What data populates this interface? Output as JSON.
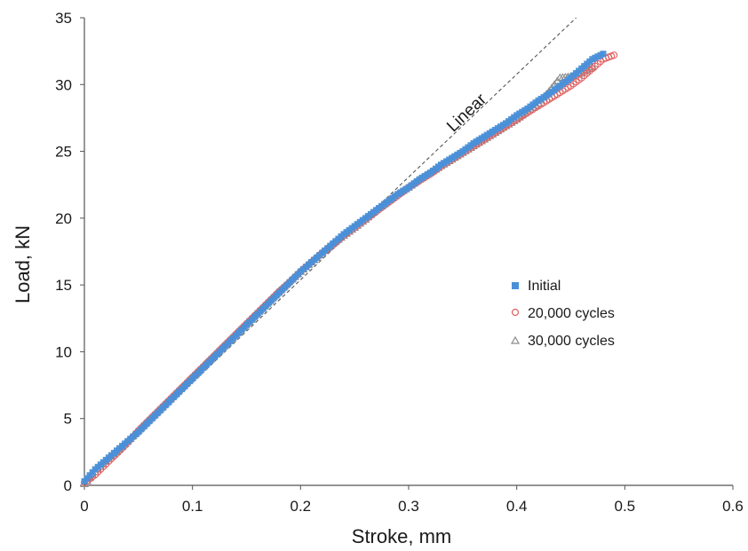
{
  "chart_data": {
    "type": "scatter",
    "title": "",
    "xlabel": "Stroke,  mm",
    "ylabel": "Load,  kN",
    "xlim": [
      0,
      0.6
    ],
    "ylim": [
      0,
      35
    ],
    "xticks": [
      "0",
      "0.1",
      "0.2",
      "0.3",
      "0.4",
      "0.5",
      "0.6"
    ],
    "yticks": [
      "0",
      "5",
      "10",
      "15",
      "20",
      "25",
      "30",
      "35"
    ],
    "grid": false,
    "legend_position": "center-right",
    "colors": {
      "initial": "#4a90d9",
      "cycles_20000": "#e06060",
      "cycles_30000": "#8c8c8c",
      "linear": "#555555"
    },
    "linear_reference": {
      "label": "Linear",
      "x": [
        0,
        0.455
      ],
      "y": [
        0,
        35
      ]
    },
    "series": [
      {
        "name": "Initial",
        "marker": "square",
        "x": [
          0.0,
          0.01,
          0.02,
          0.03,
          0.04,
          0.05,
          0.06,
          0.07,
          0.08,
          0.09,
          0.1,
          0.11,
          0.12,
          0.13,
          0.14,
          0.15,
          0.16,
          0.17,
          0.18,
          0.19,
          0.2,
          0.21,
          0.22,
          0.23,
          0.24,
          0.25,
          0.26,
          0.27,
          0.28,
          0.29,
          0.3,
          0.31,
          0.32,
          0.33,
          0.34,
          0.35,
          0.36,
          0.37,
          0.38,
          0.39,
          0.4,
          0.41,
          0.42,
          0.43,
          0.44,
          0.45,
          0.46,
          0.47,
          0.48
        ],
        "y": [
          0.3,
          1.2,
          1.9,
          2.6,
          3.3,
          4.0,
          4.8,
          5.6,
          6.4,
          7.2,
          8.0,
          8.8,
          9.6,
          10.4,
          11.2,
          12.0,
          12.8,
          13.6,
          14.4,
          15.2,
          16.0,
          16.7,
          17.4,
          18.1,
          18.8,
          19.4,
          20.0,
          20.6,
          21.2,
          21.8,
          22.3,
          22.9,
          23.4,
          24.0,
          24.5,
          25.0,
          25.6,
          26.1,
          26.6,
          27.1,
          27.7,
          28.2,
          28.8,
          29.3,
          29.9,
          30.5,
          31.2,
          31.9,
          32.3
        ]
      },
      {
        "name": "20,000 cycles",
        "marker": "circle",
        "x": [
          0.0,
          0.01,
          0.02,
          0.03,
          0.04,
          0.05,
          0.06,
          0.07,
          0.08,
          0.09,
          0.1,
          0.11,
          0.12,
          0.13,
          0.14,
          0.15,
          0.16,
          0.17,
          0.18,
          0.19,
          0.2,
          0.21,
          0.22,
          0.23,
          0.24,
          0.25,
          0.26,
          0.27,
          0.28,
          0.29,
          0.3,
          0.31,
          0.32,
          0.33,
          0.34,
          0.35,
          0.36,
          0.37,
          0.38,
          0.39,
          0.4,
          0.41,
          0.42,
          0.43,
          0.44,
          0.45,
          0.46,
          0.47,
          0.48,
          0.49
        ],
        "y": [
          0.2,
          0.8,
          1.6,
          2.4,
          3.2,
          4.1,
          4.9,
          5.7,
          6.5,
          7.3,
          8.1,
          8.9,
          9.7,
          10.5,
          11.3,
          12.1,
          12.9,
          13.7,
          14.5,
          15.2,
          16.0,
          16.7,
          17.4,
          18.0,
          18.7,
          19.3,
          19.9,
          20.5,
          21.1,
          21.7,
          22.3,
          22.8,
          23.3,
          23.9,
          24.4,
          24.9,
          25.4,
          25.9,
          26.4,
          26.9,
          27.4,
          27.9,
          28.4,
          28.9,
          29.4,
          29.9,
          30.5,
          31.2,
          31.9,
          32.2
        ]
      },
      {
        "name": "30,000 cycles",
        "marker": "triangle",
        "x": [
          0.0,
          0.01,
          0.02,
          0.03,
          0.04,
          0.05,
          0.06,
          0.07,
          0.08,
          0.09,
          0.1,
          0.11,
          0.12,
          0.13,
          0.14,
          0.15,
          0.16,
          0.17,
          0.18,
          0.19,
          0.2,
          0.21,
          0.22,
          0.23,
          0.24,
          0.25,
          0.26,
          0.27,
          0.28,
          0.29,
          0.3,
          0.31,
          0.32,
          0.33,
          0.34,
          0.35,
          0.36,
          0.37,
          0.38,
          0.39,
          0.4,
          0.41,
          0.42,
          0.43,
          0.44,
          0.45,
          0.46,
          0.47
        ],
        "y": [
          0.1,
          1.0,
          1.8,
          2.5,
          3.3,
          4.1,
          4.9,
          5.7,
          6.5,
          7.3,
          8.1,
          8.9,
          9.7,
          10.5,
          11.3,
          12.1,
          12.9,
          13.7,
          14.5,
          15.3,
          16.0,
          16.7,
          17.4,
          18.1,
          18.7,
          19.3,
          19.9,
          20.6,
          21.2,
          21.8,
          22.3,
          22.9,
          23.4,
          23.9,
          24.4,
          24.9,
          25.4,
          25.9,
          26.4,
          26.9,
          27.4,
          28.0,
          28.6,
          29.5,
          30.5,
          30.6,
          30.9,
          31.3
        ]
      }
    ]
  }
}
